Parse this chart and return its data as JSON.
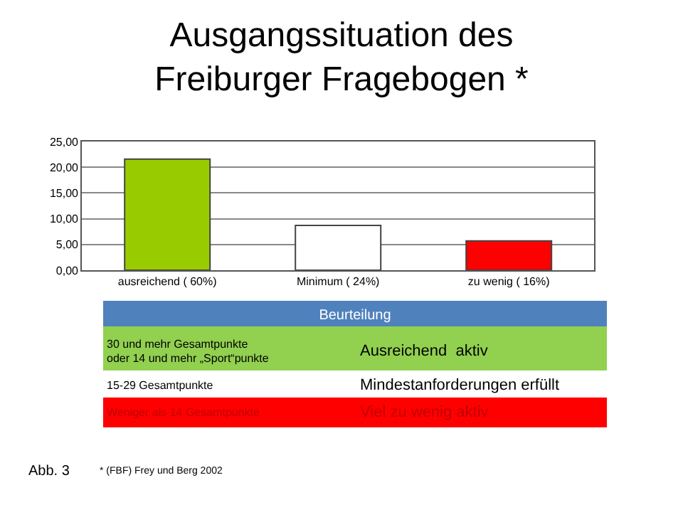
{
  "chart_data": {
    "type": "bar",
    "title": "Ausgangssituation des\nFreiburger Fragebogen *",
    "categories": [
      "ausreichend ( 60%)",
      "Minimum ( 24%)",
      "zu wenig ( 16%)"
    ],
    "values": [
      21.6,
      8.7,
      5.7
    ],
    "colors": [
      "#99cc00",
      "#ffffff",
      "#ff0000"
    ],
    "ylim": [
      0,
      25
    ],
    "yticks": [
      {
        "value": 0,
        "label": "0,00"
      },
      {
        "value": 5,
        "label": "5,00"
      },
      {
        "value": 10,
        "label": "10,00"
      },
      {
        "value": 15,
        "label": "15,00"
      },
      {
        "value": 20,
        "label": "20,00"
      },
      {
        "value": 25,
        "label": "25,00"
      }
    ],
    "grid": "y",
    "annotations": [
      "Beurteilung",
      "30 und mehr Gesamtpunkte\noder 14 und mehr „Sport“punkte",
      "Ausreichend  aktiv",
      "15-29 Gesamtpunkte",
      "Mindestanforderungen erfüllt",
      "Weniger als 14 Gesamtpunkte",
      "Viel zu wenig aktiv",
      "Abb. 3",
      "* (FBF) Frey und Berg 2002"
    ]
  }
}
